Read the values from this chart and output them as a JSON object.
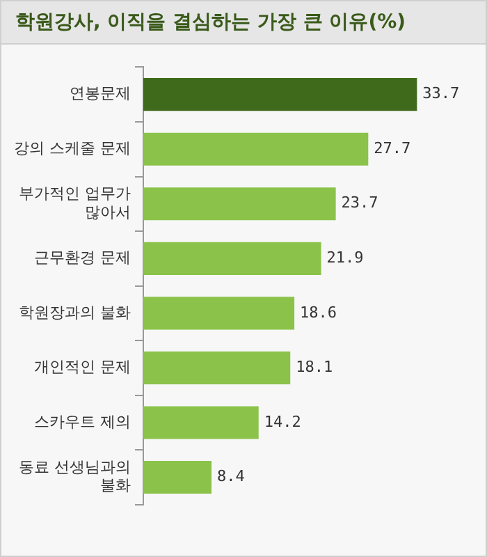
{
  "chart_data": {
    "type": "bar",
    "orientation": "horizontal",
    "title": "학원강사, 이직을 결심하는 가장 큰 이유(%)",
    "categories": [
      "연봉문제",
      "강의 스케줄 문제",
      "부가적인 업무가 많아서",
      "근무환경 문제",
      "학원장과의 불화",
      "개인적인 문제",
      "스카우트 제의",
      "동료 선생님과의 불화"
    ],
    "values": [
      33.7,
      27.7,
      23.7,
      21.9,
      18.6,
      18.1,
      14.2,
      8.4
    ],
    "colors": [
      "#3f6a1c",
      "#8bc34a",
      "#8bc34a",
      "#8bc34a",
      "#8bc34a",
      "#8bc34a",
      "#8bc34a",
      "#8bc34a"
    ],
    "data_labels": true,
    "grid": false,
    "legend": false
  }
}
